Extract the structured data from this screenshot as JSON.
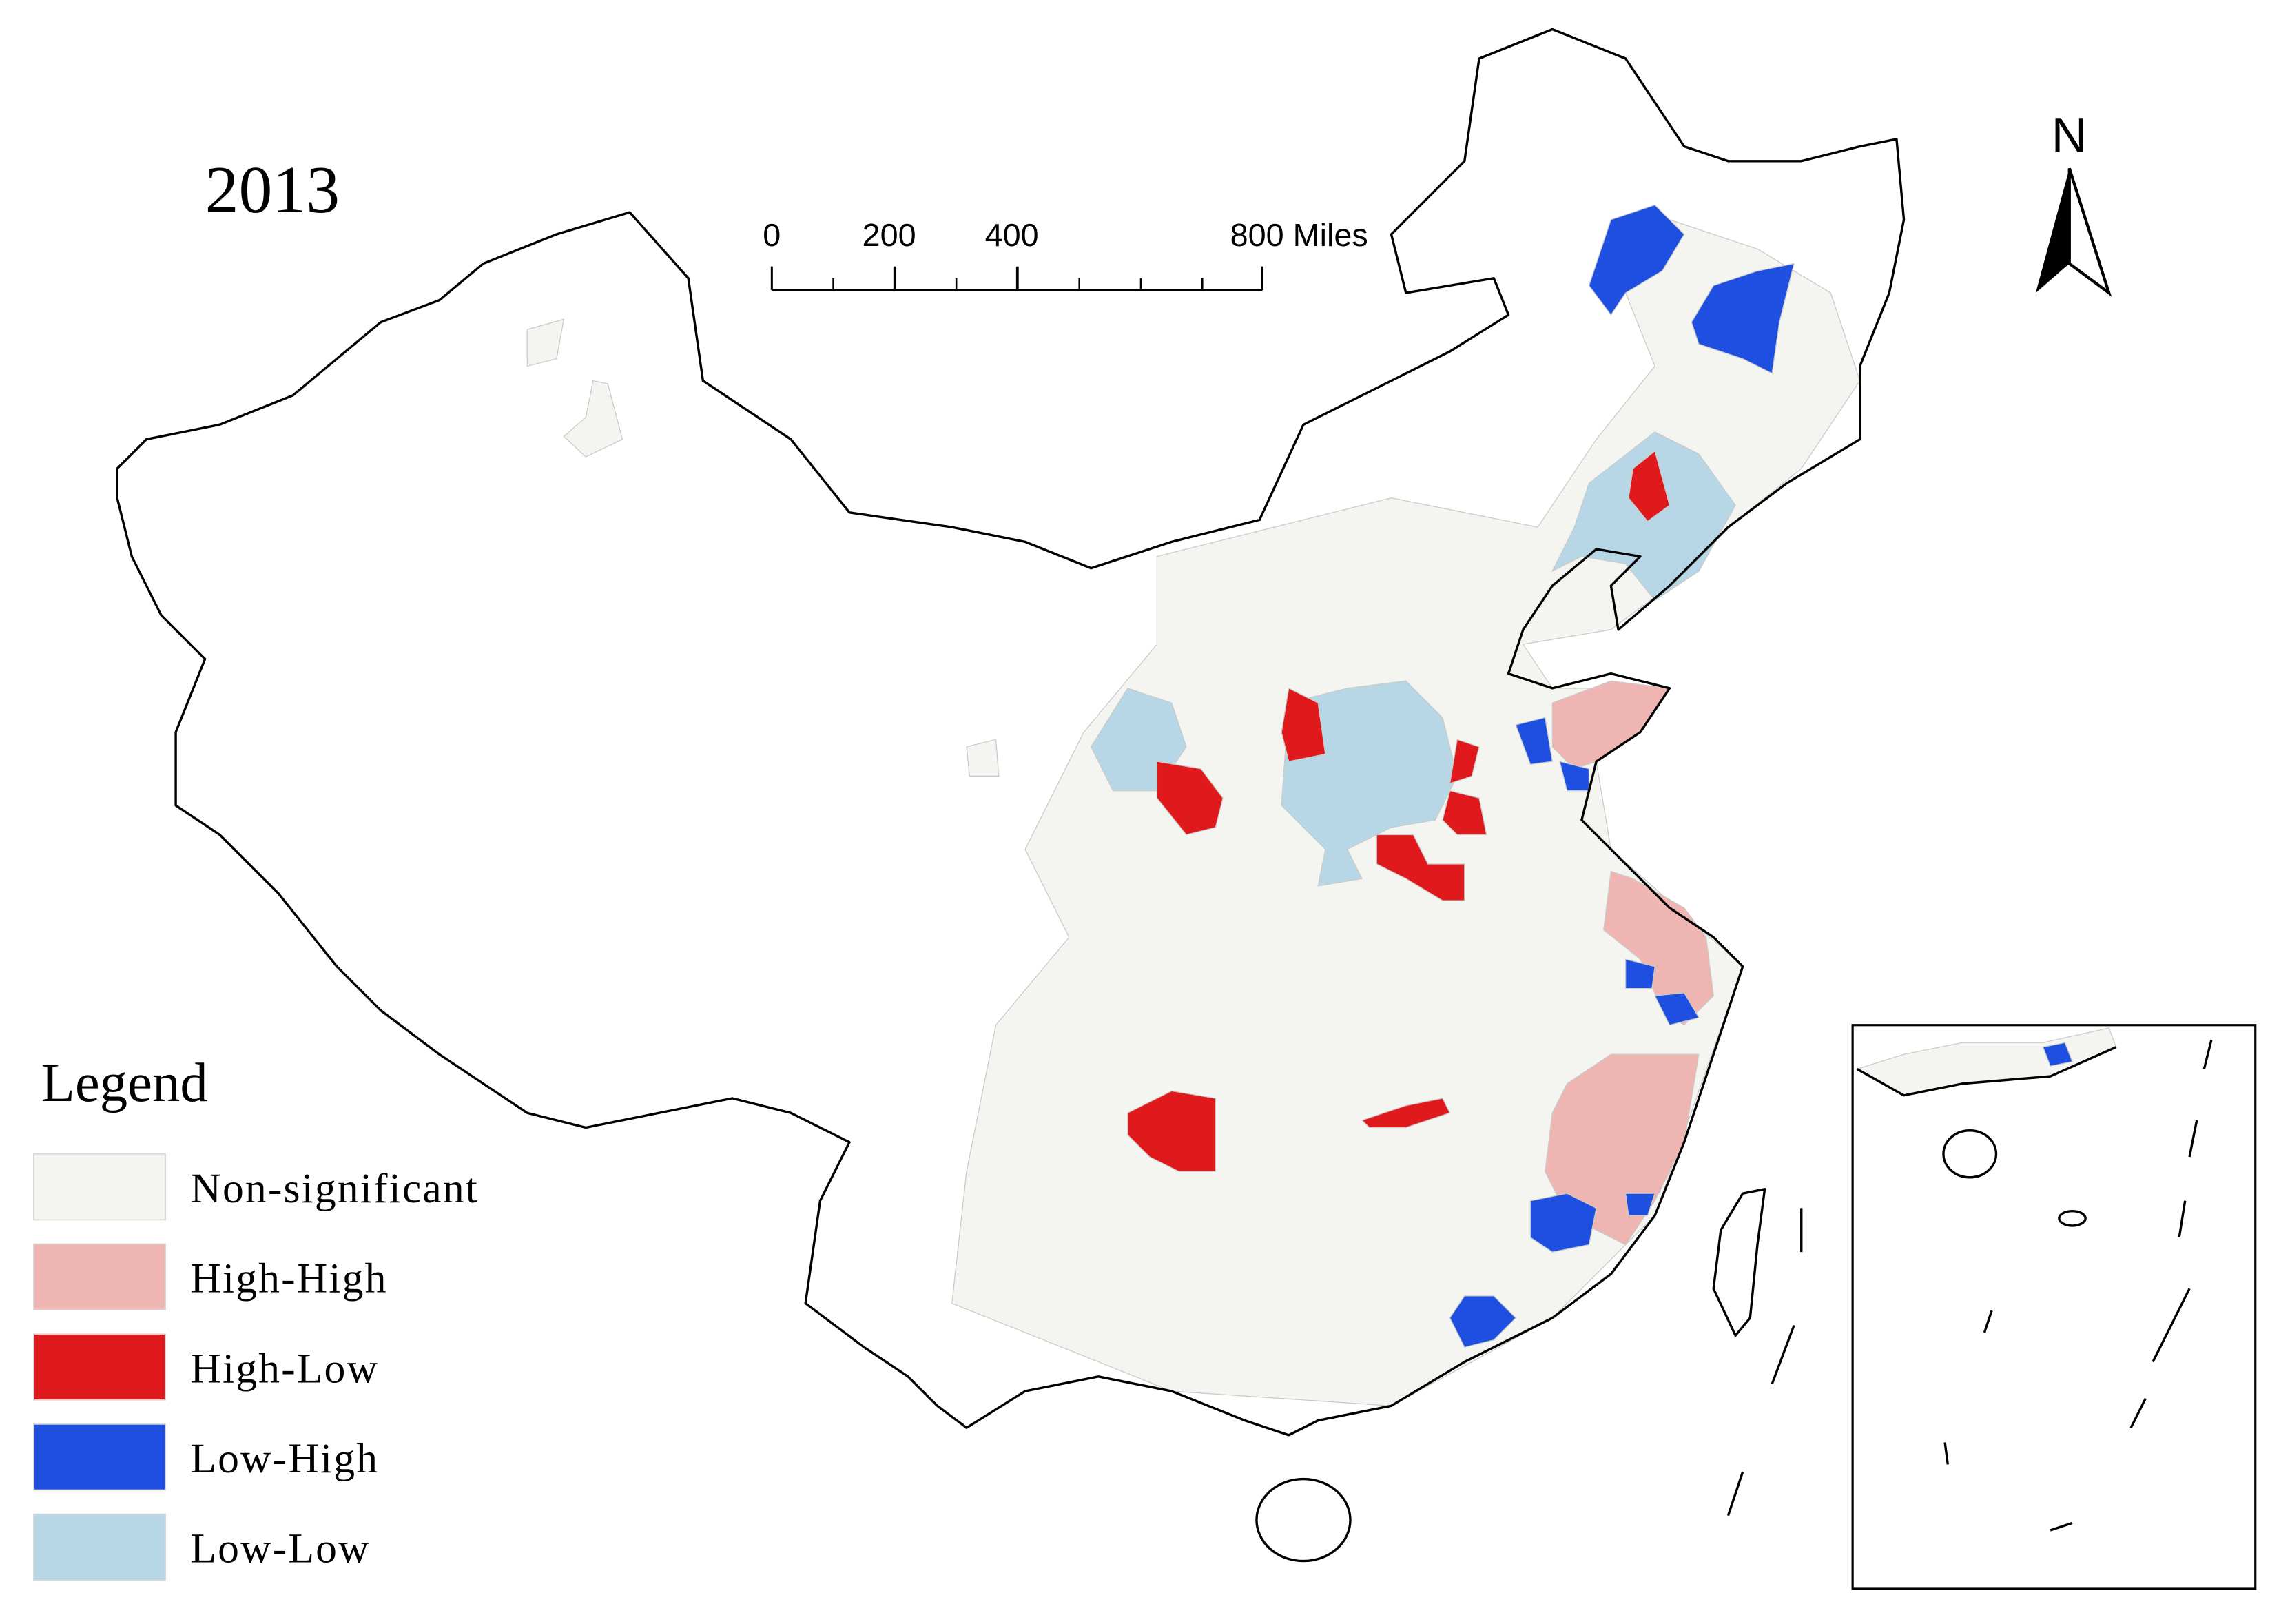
{
  "map": {
    "title": "2013",
    "north_label": "N",
    "scale_bar": {
      "max": 800,
      "ticks": [
        {
          "value": 0,
          "label": "0"
        },
        {
          "value": 200,
          "label": "200"
        },
        {
          "value": 400,
          "label": "400"
        },
        {
          "value": 800,
          "label": "800 Miles"
        }
      ]
    },
    "legend": {
      "title": "Legend",
      "items": [
        {
          "label": "Non-significant",
          "color": "#f4f5f1"
        },
        {
          "label": "High-High",
          "color": "#efb5b2"
        },
        {
          "label": "High-Low",
          "color": "#e0191c"
        },
        {
          "label": "Low-High",
          "color": "#1f4fe0"
        },
        {
          "label": "Low-Low",
          "color": "#b7d6e6"
        }
      ]
    }
  }
}
